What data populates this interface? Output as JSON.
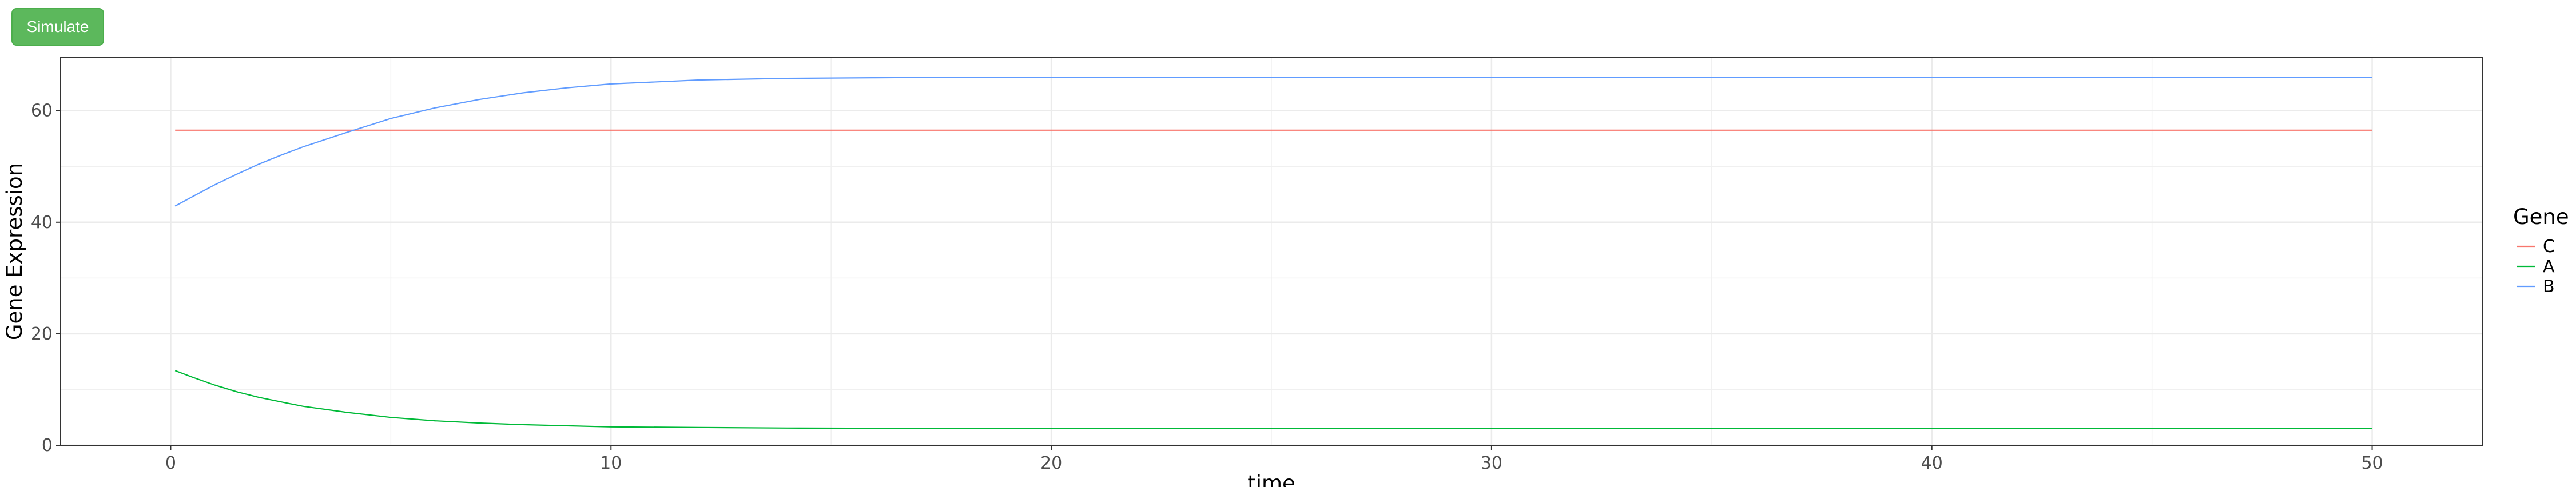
{
  "toolbar": {
    "simulate_label": "Simulate"
  },
  "chart_data": {
    "type": "line",
    "xlabel": "time",
    "ylabel": "Gene Expression",
    "xlim": [
      -2.5,
      52.5
    ],
    "ylim": [
      0,
      69.5
    ],
    "x_ticks": [
      0,
      10,
      20,
      30,
      40,
      50
    ],
    "y_ticks": [
      0,
      20,
      40,
      60
    ],
    "grid": true,
    "legend": {
      "title": "Gene",
      "position": "right"
    },
    "series": [
      {
        "name": "C",
        "color": "#F8766D",
        "x": [
          0.1,
          50
        ],
        "y": [
          56.5,
          56.5
        ]
      },
      {
        "name": "A",
        "color": "#00BA38",
        "x": [
          0.1,
          0.5,
          1,
          1.5,
          2,
          2.5,
          3,
          4,
          5,
          6,
          7,
          8,
          9,
          10,
          12,
          14,
          16,
          18,
          20,
          25,
          30,
          35,
          40,
          45,
          50
        ],
        "y": [
          13.4,
          12.2,
          10.8,
          9.6,
          8.6,
          7.8,
          7.0,
          5.9,
          5.0,
          4.4,
          4.0,
          3.7,
          3.5,
          3.3,
          3.2,
          3.1,
          3.05,
          3.0,
          3.0,
          3.0,
          3.0,
          3.0,
          3.0,
          3.0,
          3.0
        ]
      },
      {
        "name": "B",
        "color": "#619CFF",
        "x": [
          0.1,
          0.5,
          1,
          1.5,
          2,
          2.5,
          3,
          4,
          5,
          6,
          7,
          8,
          9,
          10,
          12,
          14,
          16,
          18,
          20,
          25,
          30,
          35,
          40,
          45,
          50
        ],
        "y": [
          42.9,
          44.6,
          46.7,
          48.6,
          50.4,
          52.0,
          53.5,
          56.1,
          58.6,
          60.5,
          62.0,
          63.2,
          64.1,
          64.8,
          65.5,
          65.8,
          65.9,
          66.0,
          66.0,
          66.0,
          66.0,
          66.0,
          66.0,
          66.0,
          66.0
        ]
      }
    ]
  }
}
